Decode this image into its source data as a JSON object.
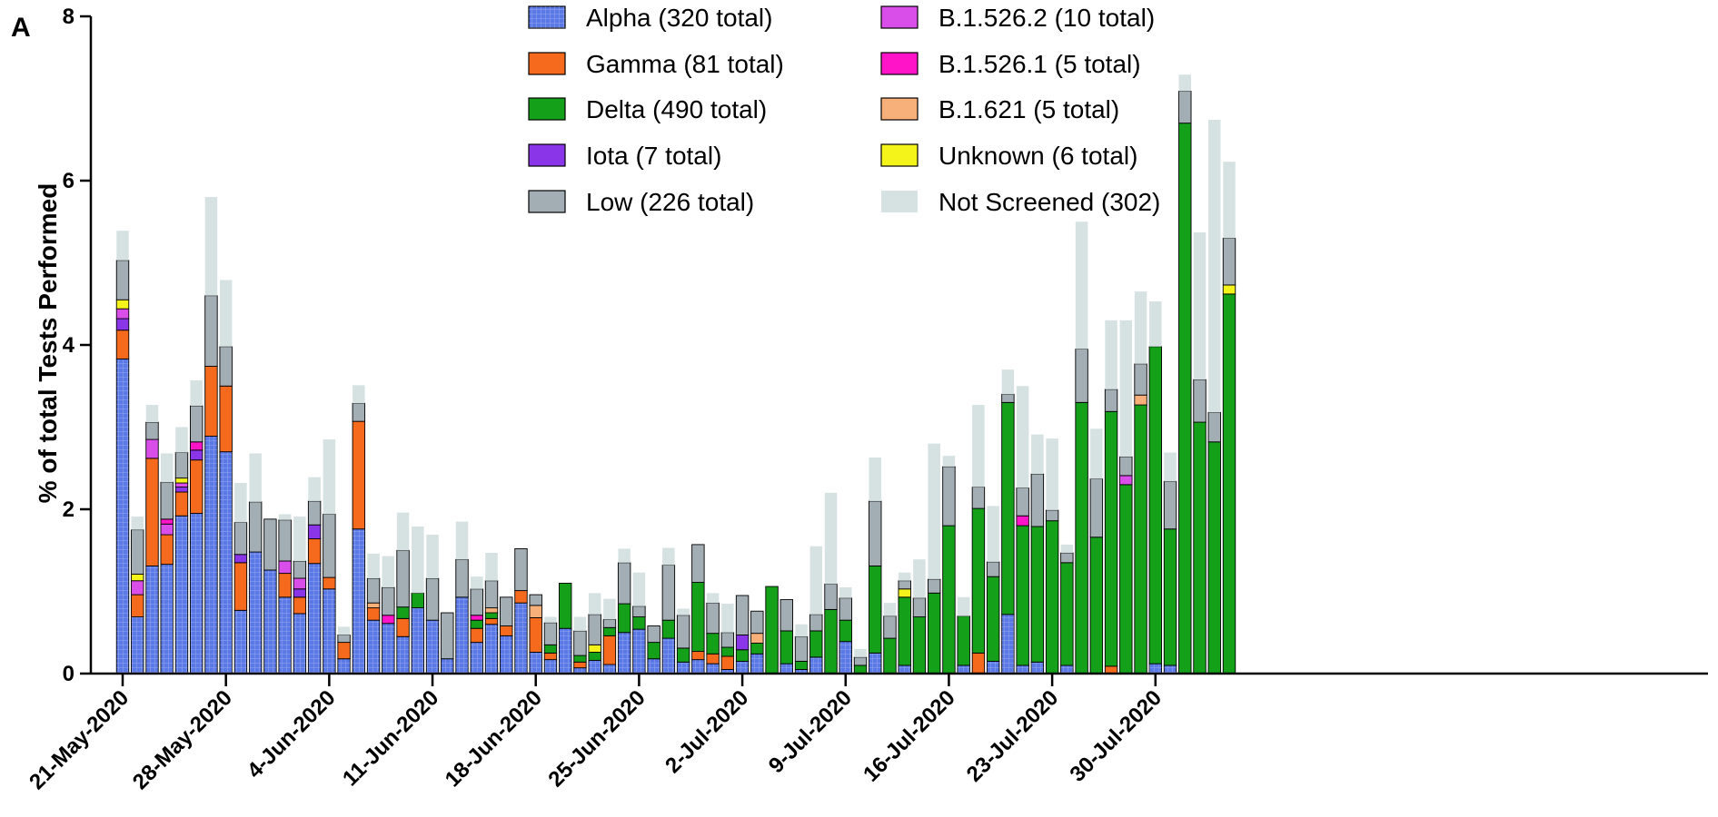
{
  "panel_label": "A",
  "chart_data": {
    "type": "bar",
    "stacked": true,
    "ylabel": "% of total Tests Performed",
    "xlabel": "",
    "ylim": [
      0,
      8
    ],
    "yticks": [
      0,
      2,
      4,
      6,
      8
    ],
    "grid": false,
    "legend_placement": "top",
    "x_tick_labels": [
      "21-May-2020",
      "28-May-2020",
      "4-Jun-2020",
      "11-Jun-2020",
      "18-Jun-2020",
      "25-Jun-2020",
      "2-Jul-2020",
      "9-Jul-2020",
      "16-Jul-2020",
      "23-Jul-2020",
      "30-Jul-2020"
    ],
    "days_per_tick": 7,
    "series_order": [
      "alpha",
      "gamma",
      "delta",
      "iota",
      "b15262",
      "b15261",
      "b1621",
      "unknown",
      "low",
      "not_screened"
    ],
    "series_meta": {
      "alpha": {
        "name": "Alpha (320 total)",
        "color": "#5a78e6"
      },
      "gamma": {
        "name": "Gamma (81 total)",
        "color": "#f56a1c"
      },
      "delta": {
        "name": "Delta (490 total)",
        "color": "#15a01a"
      },
      "iota": {
        "name": "Iota (7 total)",
        "color": "#8a36e8"
      },
      "low": {
        "name": "Low (226 total)",
        "color": "#a3adb4"
      },
      "b15262": {
        "name": "B.1.526.2 (10 total)",
        "color": "#d94de8"
      },
      "b15261": {
        "name": "B.1.526.1 (5 total)",
        "color": "#ff14c8"
      },
      "b1621": {
        "name": "B.1.621 (5 total)",
        "color": "#f7b07a"
      },
      "unknown": {
        "name": "Unknown (6 total)",
        "color": "#f4f41a"
      },
      "not_screened": {
        "name": "Not Screened (302)",
        "color": "#d6e1e1"
      }
    },
    "legend_columns": [
      [
        "alpha",
        "gamma",
        "delta",
        "iota",
        "low"
      ],
      [
        "b15262",
        "b15261",
        "b1621",
        "unknown",
        "not_screened"
      ]
    ],
    "bars": [
      {
        "alpha": 3.83,
        "gamma": 0.35,
        "iota": 0.14,
        "b15262": 0.12,
        "unknown": 0.11,
        "low": 0.48,
        "not_screened": 0.36
      },
      {
        "alpha": 0.69,
        "gamma": 0.27,
        "b15262": 0.17,
        "unknown": 0.08,
        "low": 0.54,
        "not_screened": 0.16
      },
      {
        "alpha": 1.31,
        "gamma": 1.31,
        "b15262": 0.23,
        "low": 0.21,
        "not_screened": 0.21
      },
      {
        "alpha": 1.33,
        "gamma": 0.36,
        "b15262": 0.13,
        "b15261": 0.06,
        "low": 0.45,
        "not_screened": 0.35
      },
      {
        "alpha": 1.92,
        "gamma": 0.29,
        "iota": 0.06,
        "b15262": 0.05,
        "unknown": 0.06,
        "low": 0.31,
        "not_screened": 0.31
      },
      {
        "alpha": 1.95,
        "gamma": 0.65,
        "iota": 0.12,
        "b15261": 0.1,
        "low": 0.44,
        "not_screened": 0.31
      },
      {
        "alpha": 2.89,
        "gamma": 0.85,
        "low": 0.86,
        "not_screened": 1.2
      },
      {
        "alpha": 2.7,
        "gamma": 0.8,
        "low": 0.48,
        "not_screened": 0.81
      },
      {
        "alpha": 0.77,
        "gamma": 0.58,
        "iota": 0.1,
        "low": 0.39,
        "not_screened": 0.48
      },
      {
        "alpha": 1.48,
        "low": 0.61,
        "not_screened": 0.59
      },
      {
        "alpha": 1.26,
        "low": 0.62,
        "not_screened": 0.0
      },
      {
        "alpha": 0.93,
        "gamma": 0.29,
        "b15262": 0.15,
        "low": 0.5,
        "not_screened": 0.07
      },
      {
        "alpha": 0.73,
        "gamma": 0.2,
        "iota": 0.1,
        "b15262": 0.13,
        "low": 0.21,
        "not_screened": 0.54
      },
      {
        "alpha": 1.34,
        "gamma": 0.3,
        "iota": 0.17,
        "low": 0.29,
        "not_screened": 0.29
      },
      {
        "alpha": 1.03,
        "gamma": 0.14,
        "low": 0.77,
        "not_screened": 0.91
      },
      {
        "alpha": 0.18,
        "gamma": 0.2,
        "low": 0.09,
        "not_screened": 0.1
      },
      {
        "alpha": 1.76,
        "gamma": 1.31,
        "low": 0.22,
        "not_screened": 0.22
      },
      {
        "alpha": 0.65,
        "gamma": 0.15,
        "b1621": 0.06,
        "low": 0.3,
        "not_screened": 0.3
      },
      {
        "alpha": 0.61,
        "b15261": 0.1,
        "low": 0.34,
        "not_screened": 0.38
      },
      {
        "alpha": 0.45,
        "delta": 0.14,
        "gamma": 0.22,
        "low": 0.69,
        "not_screened": 0.46
      },
      {
        "alpha": 0.8,
        "delta": 0.18,
        "not_screened": 0.81
      },
      {
        "alpha": 0.65,
        "low": 0.51,
        "not_screened": 0.53
      },
      {
        "alpha": 0.18,
        "low": 0.56,
        "not_screened": 0.0
      },
      {
        "alpha": 0.93,
        "low": 0.46,
        "not_screened": 0.46
      },
      {
        "alpha": 0.38,
        "delta": 0.1,
        "gamma": 0.17,
        "b15261": 0.06,
        "low": 0.32,
        "not_screened": 0.15
      },
      {
        "alpha": 0.6,
        "delta": 0.07,
        "gamma": 0.07,
        "b1621": 0.06,
        "low": 0.33,
        "not_screened": 0.34
      },
      {
        "alpha": 0.46,
        "gamma": 0.12,
        "low": 0.35,
        "not_screened": 0.0
      },
      {
        "alpha": 0.86,
        "gamma": 0.15,
        "low": 0.51,
        "not_screened": 0.0
      },
      {
        "alpha": 0.26,
        "gamma": 0.42,
        "b1621": 0.15,
        "low": 0.13,
        "not_screened": 0.0
      },
      {
        "alpha": 0.17,
        "delta": 0.1,
        "gamma": 0.08,
        "low": 0.27,
        "not_screened": 0.07
      },
      {
        "alpha": 0.55,
        "delta": 0.55,
        "not_screened": 0.0
      },
      {
        "alpha": 0.07,
        "delta": 0.08,
        "gamma": 0.07,
        "low": 0.3,
        "not_screened": 0.17
      },
      {
        "alpha": 0.16,
        "delta": 0.1,
        "unknown": 0.09,
        "low": 0.37,
        "not_screened": 0.26
      },
      {
        "alpha": 0.11,
        "delta": 0.1,
        "gamma": 0.35,
        "low": 0.1,
        "not_screened": 0.25
      },
      {
        "alpha": 0.5,
        "delta": 0.35,
        "low": 0.5,
        "not_screened": 0.17
      },
      {
        "alpha": 0.54,
        "delta": 0.15,
        "low": 0.13,
        "not_screened": 0.41
      },
      {
        "alpha": 0.18,
        "delta": 0.2,
        "low": 0.2,
        "not_screened": 0.0
      },
      {
        "alpha": 0.43,
        "delta": 0.22,
        "low": 0.67,
        "not_screened": 0.21
      },
      {
        "alpha": 0.14,
        "delta": 0.17,
        "low": 0.4,
        "not_screened": 0.08
      },
      {
        "alpha": 0.17,
        "delta": 0.84,
        "gamma": 0.1,
        "low": 0.46,
        "not_screened": 0.0
      },
      {
        "alpha": 0.12,
        "delta": 0.25,
        "gamma": 0.12,
        "low": 0.37,
        "not_screened": 0.12
      },
      {
        "alpha": 0.05,
        "delta": 0.11,
        "gamma": 0.16,
        "low": 0.18,
        "not_screened": 0.35
      },
      {
        "alpha": 0.15,
        "delta": 0.14,
        "iota": 0.18,
        "low": 0.48,
        "not_screened": 0.0
      },
      {
        "alpha": 0.24,
        "delta": 0.13,
        "b1621": 0.12,
        "low": 0.27,
        "not_screened": 0.0
      },
      {
        "delta": 1.06,
        "not_screened": 0.0
      },
      {
        "alpha": 0.12,
        "delta": 0.4,
        "low": 0.38,
        "not_screened": 0.0
      },
      {
        "alpha": 0.05,
        "delta": 0.1,
        "low": 0.3,
        "not_screened": 0.15
      },
      {
        "alpha": 0.2,
        "delta": 0.32,
        "low": 0.2,
        "not_screened": 0.83
      },
      {
        "delta": 0.78,
        "low": 0.31,
        "not_screened": 1.11
      },
      {
        "alpha": 0.39,
        "delta": 0.26,
        "low": 0.27,
        "not_screened": 0.13
      },
      {
        "delta": 0.1,
        "low": 0.1,
        "not_screened": 0.1
      },
      {
        "alpha": 0.25,
        "delta": 1.06,
        "low": 0.79,
        "not_screened": 0.53
      },
      {
        "delta": 0.43,
        "low": 0.27,
        "not_screened": 0.16
      },
      {
        "alpha": 0.1,
        "delta": 0.83,
        "unknown": 0.1,
        "low": 0.1,
        "not_screened": 0.1
      },
      {
        "delta": 0.69,
        "low": 0.23,
        "not_screened": 0.47
      },
      {
        "delta": 0.98,
        "low": 0.17,
        "not_screened": 1.65
      },
      {
        "delta": 1.8,
        "low": 0.72,
        "not_screened": 0.13
      },
      {
        "alpha": 0.1,
        "delta": 0.6,
        "not_screened": 0.23
      },
      {
        "delta": 1.76,
        "gamma": 0.25,
        "low": 0.26,
        "not_screened": 1.0
      },
      {
        "alpha": 0.15,
        "delta": 1.03,
        "low": 0.18,
        "not_screened": 0.68
      },
      {
        "alpha": 0.72,
        "delta": 2.58,
        "low": 0.1,
        "not_screened": 0.3
      },
      {
        "alpha": 0.1,
        "delta": 1.7,
        "b15261": 0.12,
        "low": 0.34,
        "not_screened": 1.24
      },
      {
        "alpha": 0.14,
        "delta": 1.65,
        "low": 0.64,
        "not_screened": 0.48
      },
      {
        "delta": 1.86,
        "low": 0.13,
        "not_screened": 0.87
      },
      {
        "alpha": 0.1,
        "delta": 1.25,
        "low": 0.12,
        "not_screened": 0.1
      },
      {
        "delta": 3.3,
        "low": 0.65,
        "not_screened": 1.55
      },
      {
        "delta": 1.66,
        "low": 0.71,
        "not_screened": 0.61
      },
      {
        "delta": 3.1,
        "gamma": 0.09,
        "low": 0.27,
        "not_screened": 0.84
      },
      {
        "delta": 2.3,
        "b15262": 0.11,
        "low": 0.23,
        "not_screened": 1.66
      },
      {
        "delta": 3.27,
        "b1621": 0.12,
        "low": 0.38,
        "not_screened": 0.88
      },
      {
        "alpha": 0.12,
        "delta": 3.86,
        "not_screened": 0.55
      },
      {
        "alpha": 0.1,
        "delta": 1.66,
        "low": 0.58,
        "not_screened": 0.35
      },
      {
        "delta": 6.7,
        "low": 0.39,
        "not_screened": 0.2
      },
      {
        "delta": 3.06,
        "low": 0.52,
        "not_screened": 1.79
      },
      {
        "delta": 2.82,
        "low": 0.36,
        "not_screened": 3.56
      },
      {
        "delta": 4.62,
        "unknown": 0.11,
        "low": 0.57,
        "not_screened": 0.93
      }
    ]
  }
}
